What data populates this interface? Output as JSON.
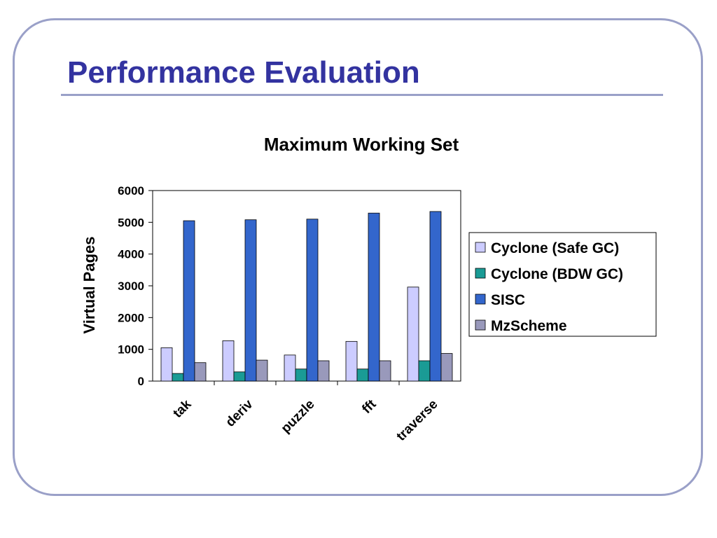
{
  "slide": {
    "title": "Performance Evaluation"
  },
  "colors": {
    "title": "#3333a0",
    "frame": "#9aa0c8"
  },
  "chart_data": {
    "type": "bar",
    "title": "Maximum Working Set",
    "xlabel": "",
    "ylabel": "Virtual Pages",
    "ylim": [
      0,
      6000
    ],
    "yticks": [
      0,
      1000,
      2000,
      3000,
      4000,
      5000,
      6000
    ],
    "grid": false,
    "legend_position": "right",
    "categories": [
      "tak",
      "deriv",
      "puzzle",
      "fft",
      "traverse"
    ],
    "series": [
      {
        "name": "Cyclone (Safe GC)",
        "color": "#ccccff",
        "values": [
          1050,
          1270,
          820,
          1250,
          2960
        ]
      },
      {
        "name": "Cyclone (BDW GC)",
        "color": "#1a9b95",
        "values": [
          240,
          290,
          380,
          380,
          640
        ]
      },
      {
        "name": "SISC",
        "color": "#3366cc",
        "values": [
          5050,
          5080,
          5100,
          5290,
          5340
        ]
      },
      {
        "name": "MzScheme",
        "color": "#9999bb",
        "values": [
          580,
          660,
          640,
          640,
          870
        ]
      }
    ]
  }
}
